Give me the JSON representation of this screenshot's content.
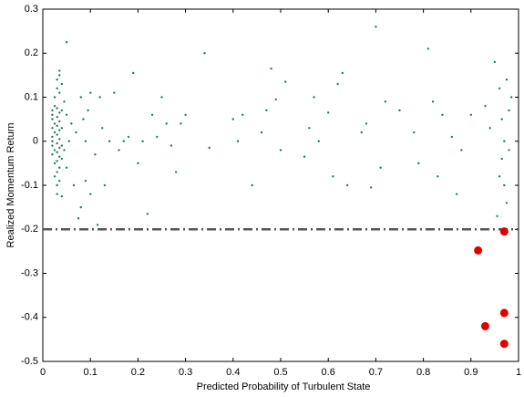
{
  "chart_data": {
    "type": "scatter",
    "xlabel": "Predicted Probability of Turbulent State",
    "ylabel": "Realized Momentum Return",
    "xlim": [
      0,
      1
    ],
    "xticks": [
      0,
      0.1,
      0.2,
      0.3,
      0.4,
      0.5,
      0.6,
      0.7,
      0.8,
      0.9,
      1
    ],
    "ylim": [
      -0.5,
      0.3
    ],
    "yticks": [
      -0.5,
      -0.4,
      -0.3,
      -0.2,
      -0.1,
      0,
      0.1,
      0.2,
      0.3
    ],
    "hline": {
      "value": -0.2,
      "color": "#555555"
    },
    "series": [
      {
        "color": "#2a7a5a",
        "x": [
          0.02,
          0.02,
          0.02,
          0.02,
          0.02,
          0.02,
          0.02,
          0.02,
          0.025,
          0.025,
          0.025,
          0.025,
          0.025,
          0.025,
          0.025,
          0.03,
          0.03,
          0.03,
          0.03,
          0.03,
          0.03,
          0.03,
          0.03,
          0.03,
          0.03,
          0.03,
          0.03,
          0.035,
          0.035,
          0.035,
          0.035,
          0.035,
          0.035,
          0.035,
          0.035,
          0.035,
          0.035,
          0.035,
          0.04,
          0.04,
          0.04,
          0.04,
          0.04,
          0.04,
          0.045,
          0.045,
          0.05,
          0.05,
          0.05,
          0.055,
          0.06,
          0.065,
          0.07,
          0.075,
          0.08,
          0.08,
          0.085,
          0.09,
          0.09,
          0.095,
          0.1,
          0.1,
          0.11,
          0.115,
          0.12,
          0.125,
          0.13,
          0.14,
          0.15,
          0.16,
          0.17,
          0.18,
          0.19,
          0.2,
          0.21,
          0.22,
          0.23,
          0.24,
          0.25,
          0.26,
          0.27,
          0.28,
          0.29,
          0.3,
          0.34,
          0.35,
          0.4,
          0.41,
          0.42,
          0.44,
          0.46,
          0.47,
          0.48,
          0.49,
          0.5,
          0.51,
          0.55,
          0.56,
          0.57,
          0.58,
          0.6,
          0.61,
          0.62,
          0.63,
          0.64,
          0.67,
          0.68,
          0.69,
          0.7,
          0.71,
          0.72,
          0.75,
          0.78,
          0.79,
          0.81,
          0.82,
          0.83,
          0.84,
          0.86,
          0.87,
          0.88,
          0.9,
          0.93,
          0.94,
          0.95,
          0.955,
          0.96,
          0.96,
          0.965,
          0.965,
          0.97,
          0.97,
          0.975,
          0.975,
          0.98,
          0.98,
          0.985
        ],
        "y": [
          0.07,
          0.05,
          0.03,
          0.01,
          -0.01,
          -0.03,
          0.0,
          0.06,
          0.08,
          0.04,
          0.02,
          -0.02,
          -0.05,
          -0.08,
          0.1,
          0.075,
          0.055,
          0.035,
          0.015,
          -0.005,
          -0.025,
          -0.045,
          -0.07,
          -0.1,
          -0.12,
          0.12,
          0.14,
          0.16,
          0.065,
          0.045,
          0.025,
          0.005,
          -0.015,
          -0.035,
          -0.06,
          -0.09,
          0.11,
          0.15,
          0.07,
          0.03,
          -0.01,
          -0.04,
          -0.125,
          0.13,
          0.09,
          -0.02,
          0.225,
          0.06,
          -0.06,
          0.0,
          0.04,
          -0.1,
          0.02,
          -0.175,
          -0.15,
          0.1,
          0.05,
          -0.09,
          0.0,
          0.07,
          -0.12,
          0.11,
          -0.03,
          -0.19,
          0.1,
          0.03,
          -0.1,
          0.0,
          0.11,
          -0.02,
          0.0,
          0.01,
          0.155,
          -0.05,
          0.0,
          -0.165,
          0.06,
          0.01,
          0.1,
          0.04,
          -0.01,
          -0.07,
          0.04,
          0.06,
          0.2,
          -0.015,
          0.05,
          0.0,
          0.06,
          -0.1,
          0.02,
          0.07,
          0.165,
          0.095,
          -0.02,
          0.135,
          -0.035,
          0.03,
          0.1,
          0.0,
          0.065,
          -0.08,
          0.13,
          0.155,
          -0.1,
          0.02,
          0.04,
          -0.105,
          0.26,
          -0.06,
          0.09,
          0.07,
          0.02,
          -0.05,
          0.21,
          0.09,
          -0.08,
          0.06,
          0.01,
          -0.12,
          -0.02,
          0.06,
          0.08,
          0.03,
          0.18,
          -0.17,
          0.12,
          -0.08,
          0.05,
          -0.04,
          0.0,
          -0.1,
          0.14,
          -0.14,
          0.07,
          -0.02,
          0.1
        ]
      },
      {
        "color": "#e00000",
        "x": [
          0.97,
          0.915,
          0.97,
          0.93,
          0.97
        ],
        "y": [
          -0.205,
          -0.248,
          -0.39,
          -0.42,
          -0.46
        ]
      }
    ]
  }
}
